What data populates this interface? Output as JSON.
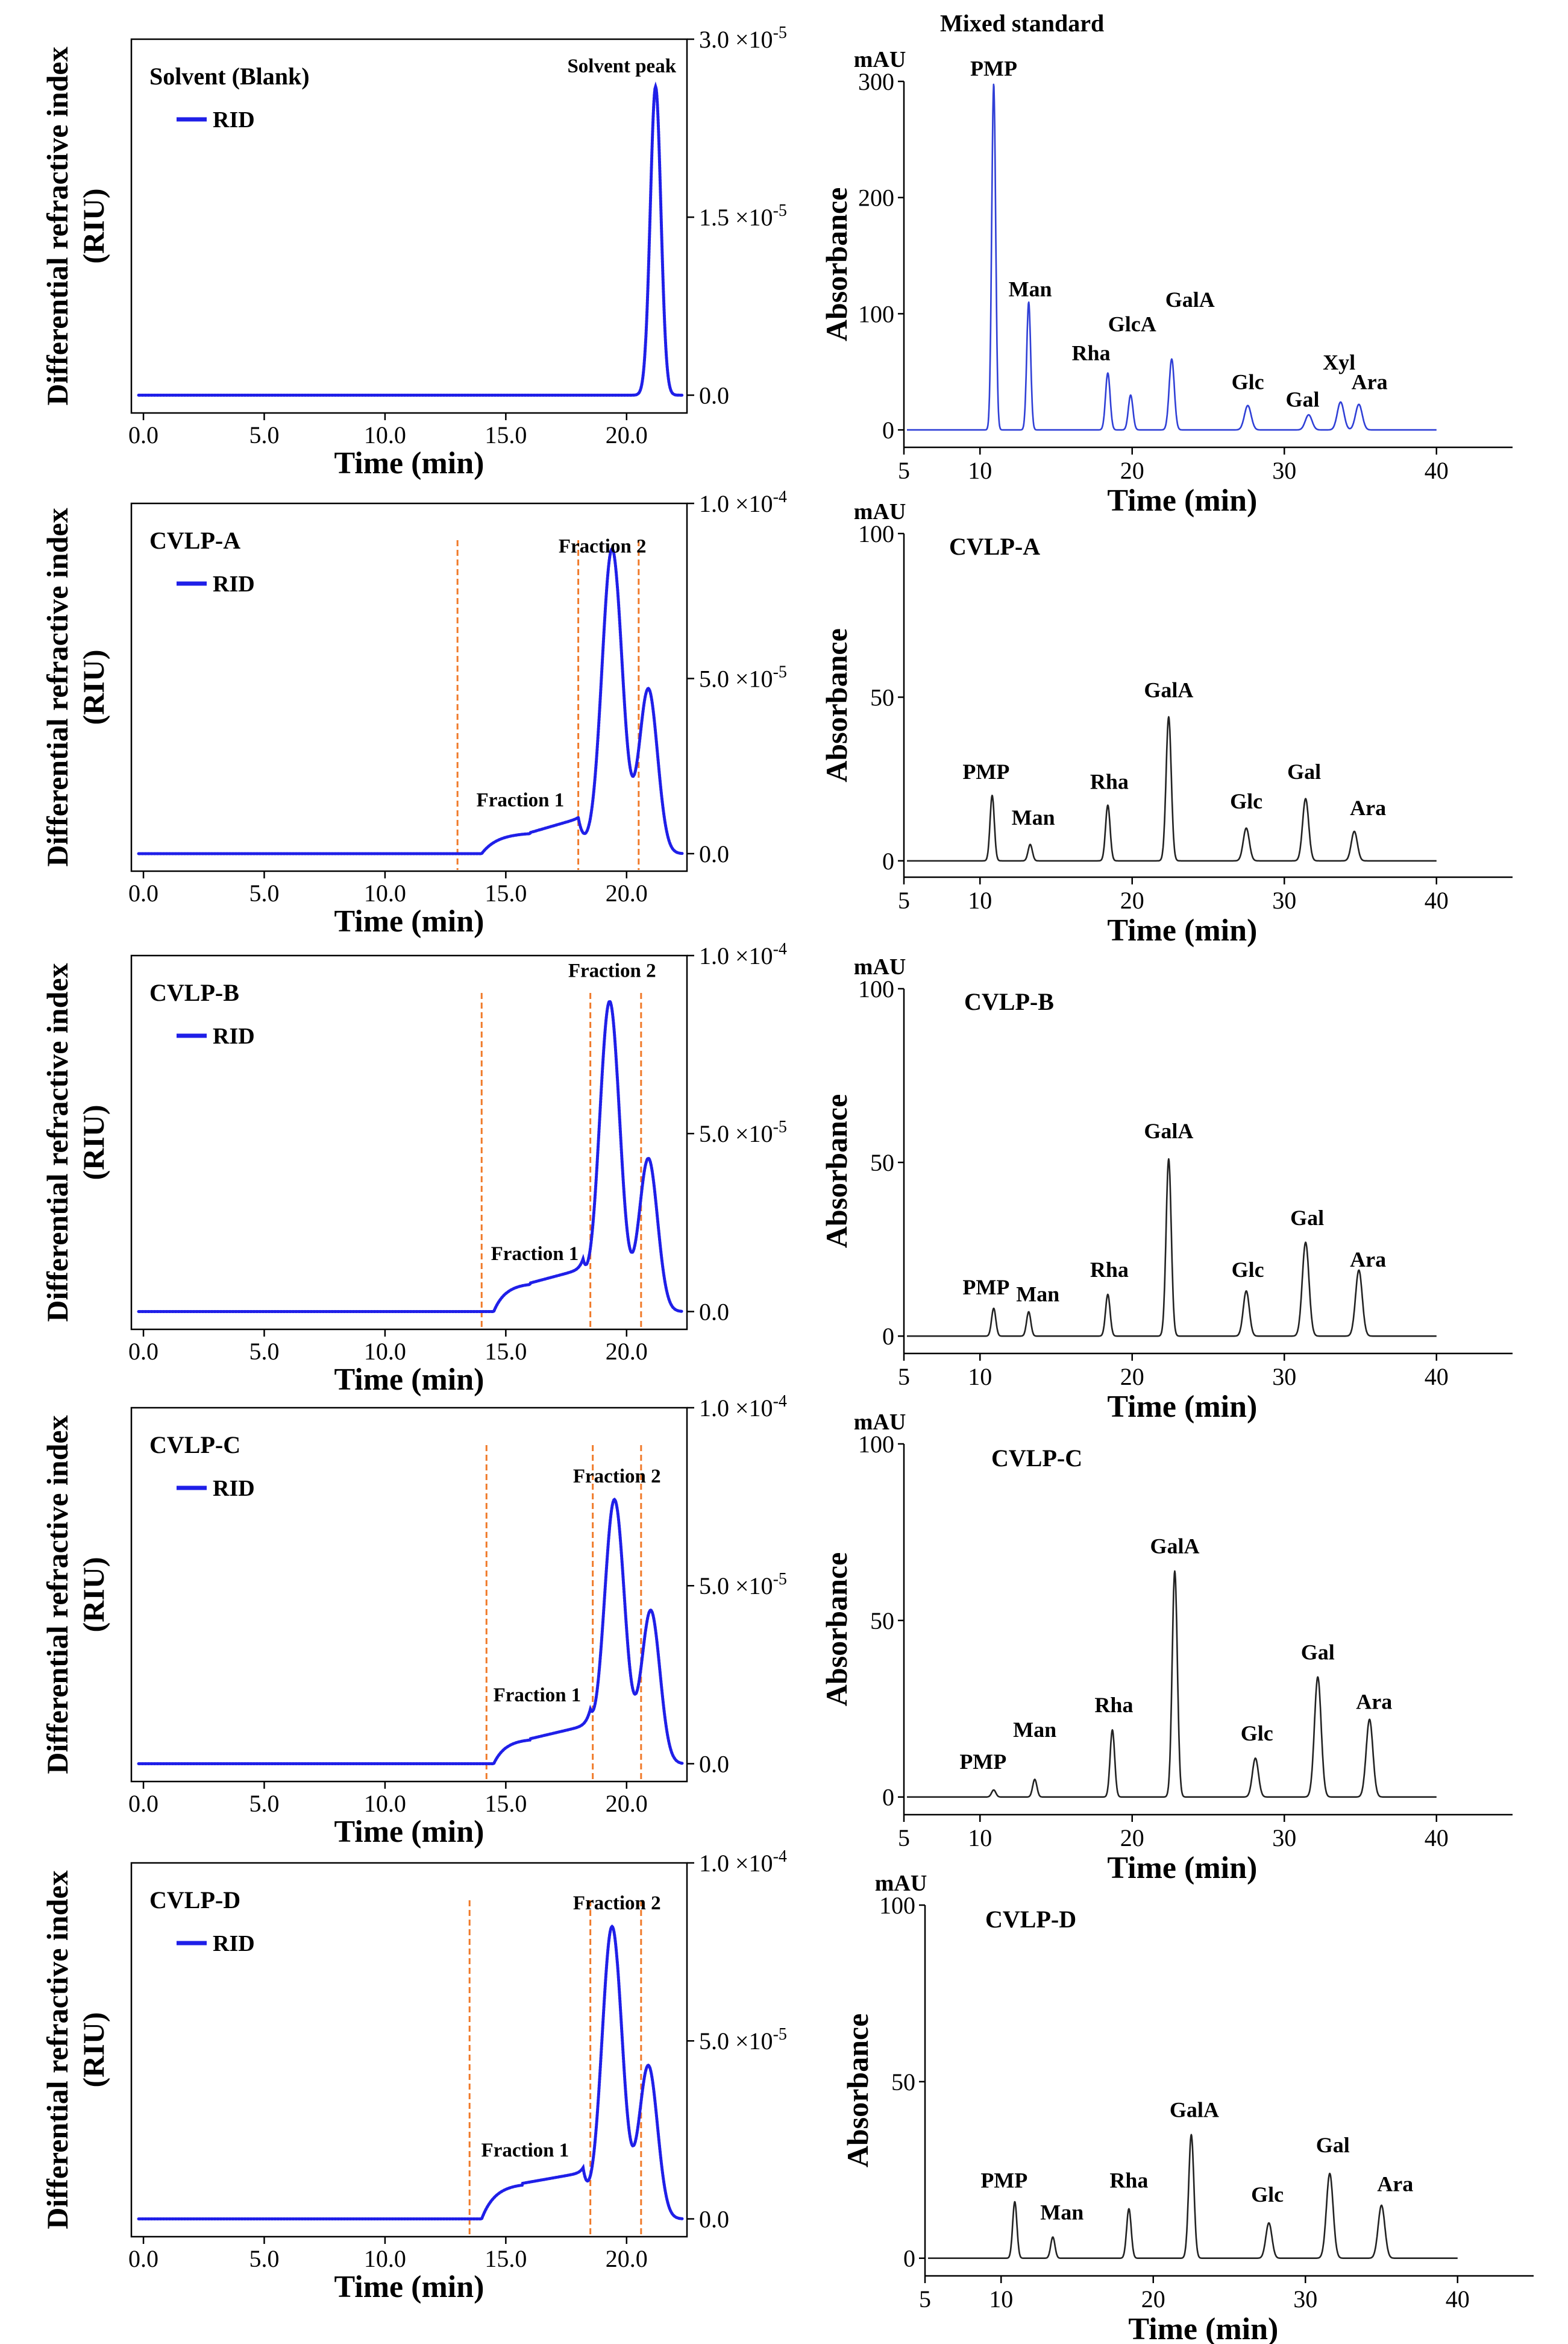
{
  "chart_data": [
    {
      "type": "line",
      "title": "Solvent (Blank)",
      "xlabel": "Time (min)",
      "ylabel": "Differential refractive index (RIU)",
      "xlim": [
        -0.5,
        22.5
      ],
      "ylim": [
        -1.5e-06,
        3e-05
      ],
      "x_ticks": [
        "0.0",
        "5.0",
        "10.0",
        "15.0",
        "20.0"
      ],
      "x_tick_values": [
        0,
        5,
        10,
        15,
        20
      ],
      "y_ticks": [
        "0.0",
        "1.5 ×10⁻⁵",
        "3.0 ×10⁻⁵"
      ],
      "y_tick_values": [
        0,
        1.5e-05,
        3e-05
      ],
      "legend": "RID",
      "color": "#1f1fe8",
      "baseline": 0,
      "shoulder": null,
      "peaks": [
        {
          "x": 21.2,
          "y": 2.6e-05,
          "w": 0.22
        }
      ],
      "peak_labels": [
        {
          "text": "Solvent peak",
          "x": 19.8,
          "y": 2.72e-05
        }
      ],
      "fractions": [],
      "fraction_labels": []
    },
    {
      "type": "line",
      "title": "CVLP-A",
      "xlabel": "Time (min)",
      "ylabel": "Differential refractive index (RIU)",
      "xlim": [
        -0.5,
        22.5
      ],
      "ylim": [
        -5e-06,
        0.0001
      ],
      "x_ticks": [
        "0.0",
        "5.0",
        "10.0",
        "15.0",
        "20.0"
      ],
      "x_tick_values": [
        0,
        5,
        10,
        15,
        20
      ],
      "y_ticks": [
        "0.0",
        "5.0 ×10⁻⁵",
        "1.0 ×10⁻⁴"
      ],
      "y_tick_values": [
        0,
        5e-05,
        0.0001
      ],
      "legend": "RID",
      "color": "#1f1fe8",
      "baseline": 0,
      "shoulder": {
        "start": 14.0,
        "mid": 16.0,
        "end": 18.0,
        "y1": 6e-06,
        "y2": 1e-05
      },
      "peaks": [
        {
          "x": 19.4,
          "y": 8.7e-05,
          "w": 0.42
        },
        {
          "x": 20.9,
          "y": 4.7e-05,
          "w": 0.38
        }
      ],
      "peak_labels": [],
      "fractions": [
        13.0,
        18.0,
        20.5
      ],
      "fraction_labels": [
        {
          "text": "Fraction 1",
          "x": 15.6,
          "y": 1.35e-05
        },
        {
          "text": "Fraction 2",
          "x": 19.0,
          "y": 8.6e-05
        }
      ]
    },
    {
      "type": "line",
      "title": "CVLP-B",
      "xlabel": "Time (min)",
      "ylabel": "Differential refractive index (RIU)",
      "xlim": [
        -0.5,
        22.5
      ],
      "ylim": [
        -5e-06,
        0.0001
      ],
      "x_ticks": [
        "0.0",
        "5.0",
        "10.0",
        "15.0",
        "20.0"
      ],
      "x_tick_values": [
        0,
        5,
        10,
        15,
        20
      ],
      "y_ticks": [
        "0.0",
        "5.0 ×10⁻⁵",
        "1.0 ×10⁻⁴"
      ],
      "y_tick_values": [
        0,
        5e-05,
        0.0001
      ],
      "legend": "RID",
      "color": "#1f1fe8",
      "baseline": 0,
      "shoulder": {
        "start": 14.5,
        "mid": 16.0,
        "end": 18.2,
        "y1": 8e-06,
        "y2": 1.2e-05
      },
      "peaks": [
        {
          "x": 19.3,
          "y": 8.7e-05,
          "w": 0.42
        },
        {
          "x": 20.9,
          "y": 4.3e-05,
          "w": 0.38
        }
      ],
      "peak_labels": [],
      "fractions": [
        14.0,
        18.5,
        20.6
      ],
      "fraction_labels": [
        {
          "text": "Fraction 1",
          "x": 16.2,
          "y": 1.45e-05
        },
        {
          "text": "Fraction 2",
          "x": 19.4,
          "y": 9.4e-05
        }
      ]
    },
    {
      "type": "line",
      "title": "CVLP-C",
      "xlabel": "Time (min)",
      "ylabel": "Differential refractive index (RIU)",
      "xlim": [
        -0.5,
        22.5
      ],
      "ylim": [
        -5e-06,
        0.0001
      ],
      "x_ticks": [
        "0.0",
        "5.0",
        "10.0",
        "15.0",
        "20.0"
      ],
      "x_tick_values": [
        0,
        5,
        10,
        15,
        20
      ],
      "y_ticks": [
        "0.0",
        "5.0 ×10⁻⁵",
        "1.0 ×10⁻⁴"
      ],
      "y_tick_values": [
        0,
        5e-05,
        0.0001
      ],
      "legend": "RID",
      "color": "#1f1fe8",
      "baseline": 0,
      "shoulder": {
        "start": 14.5,
        "mid": 16.0,
        "end": 18.5,
        "y1": 7e-06,
        "y2": 1.1e-05
      },
      "peaks": [
        {
          "x": 19.5,
          "y": 7.4e-05,
          "w": 0.42
        },
        {
          "x": 21.0,
          "y": 4.3e-05,
          "w": 0.38
        }
      ],
      "peak_labels": [],
      "fractions": [
        14.2,
        18.6,
        20.6
      ],
      "fraction_labels": [
        {
          "text": "Fraction 1",
          "x": 16.3,
          "y": 1.75e-05
        },
        {
          "text": "Fraction 2",
          "x": 19.6,
          "y": 7.9e-05
        }
      ]
    },
    {
      "type": "line",
      "title": "CVLP-D",
      "xlabel": "Time (min)",
      "ylabel": "Differential refractive index (RIU)",
      "xlim": [
        -0.5,
        22.5
      ],
      "ylim": [
        -5e-06,
        0.0001
      ],
      "x_ticks": [
        "0.0",
        "5.0",
        "10.0",
        "15.0",
        "20.0"
      ],
      "x_tick_values": [
        0,
        5,
        10,
        15,
        20
      ],
      "y_ticks": [
        "0.0",
        "5.0 ×10⁻⁵",
        "1.0 ×10⁻⁴"
      ],
      "y_tick_values": [
        0,
        5e-05,
        0.0001
      ],
      "legend": "RID",
      "color": "#1f1fe8",
      "baseline": 0,
      "shoulder": {
        "start": 14.0,
        "mid": 15.7,
        "end": 18.2,
        "y1": 1e-05,
        "y2": 1.3e-05
      },
      "peaks": [
        {
          "x": 19.4,
          "y": 8.2e-05,
          "w": 0.42
        },
        {
          "x": 20.9,
          "y": 4.3e-05,
          "w": 0.38
        }
      ],
      "peak_labels": [],
      "fractions": [
        13.5,
        18.5,
        20.6
      ],
      "fraction_labels": [
        {
          "text": "Fraction 1",
          "x": 15.8,
          "y": 1.75e-05
        },
        {
          "text": "Fraction 2",
          "x": 19.6,
          "y": 8.7e-05
        }
      ]
    },
    {
      "type": "line",
      "title": "Mixed standard",
      "xlabel": "Time (min)",
      "ylabel": "Absorbance",
      "unit": "mAU",
      "xlim": [
        5,
        45
      ],
      "ylim": [
        -15,
        300
      ],
      "x_ticks": [
        "5",
        "10",
        "20",
        "30",
        "40"
      ],
      "x_tick_values": [
        5,
        10,
        20,
        30,
        40
      ],
      "y_ticks": [
        "0",
        "100",
        "200",
        "300"
      ],
      "y_tick_values": [
        0,
        100,
        200,
        300
      ],
      "color": "#2f3fd6",
      "baseline": 0,
      "peaks": [
        {
          "x": 10.9,
          "y": 298,
          "w": 0.13
        },
        {
          "x": 13.2,
          "y": 110,
          "w": 0.13
        },
        {
          "x": 18.4,
          "y": 49,
          "w": 0.15
        },
        {
          "x": 19.9,
          "y": 30,
          "w": 0.15
        },
        {
          "x": 22.6,
          "y": 61,
          "w": 0.17
        },
        {
          "x": 27.6,
          "y": 21,
          "w": 0.22
        },
        {
          "x": 31.6,
          "y": 13,
          "w": 0.22
        },
        {
          "x": 33.7,
          "y": 24,
          "w": 0.22
        },
        {
          "x": 34.9,
          "y": 22,
          "w": 0.22
        }
      ],
      "peak_labels": [
        {
          "text": "PMP",
          "x": 10.9,
          "y": 305
        },
        {
          "text": "Man",
          "x": 13.3,
          "y": 115
        },
        {
          "text": "Rha",
          "x": 17.3,
          "y": 60
        },
        {
          "text": "GlcA",
          "x": 20.0,
          "y": 85
        },
        {
          "text": "GalA",
          "x": 23.8,
          "y": 106
        },
        {
          "text": "Glc",
          "x": 27.6,
          "y": 35
        },
        {
          "text": "Gal",
          "x": 31.2,
          "y": 20
        },
        {
          "text": "Xyl",
          "x": 33.6,
          "y": 52
        },
        {
          "text": "Ara",
          "x": 35.6,
          "y": 35
        }
      ]
    },
    {
      "type": "line",
      "title": "CVLP-A",
      "xlabel": "Time (min)",
      "ylabel": "Absorbance",
      "unit": "mAU",
      "xlim": [
        5,
        45
      ],
      "ylim": [
        -5,
        100
      ],
      "x_ticks": [
        "5",
        "10",
        "20",
        "30",
        "40"
      ],
      "x_tick_values": [
        5,
        10,
        20,
        30,
        40
      ],
      "y_ticks": [
        "0",
        "50",
        "100"
      ],
      "y_tick_values": [
        0,
        50,
        100
      ],
      "color": "#222222",
      "baseline": 0,
      "peaks": [
        {
          "x": 10.8,
          "y": 20,
          "w": 0.14
        },
        {
          "x": 13.3,
          "y": 5,
          "w": 0.14
        },
        {
          "x": 18.4,
          "y": 17,
          "w": 0.15
        },
        {
          "x": 22.4,
          "y": 44,
          "w": 0.17
        },
        {
          "x": 27.5,
          "y": 10,
          "w": 0.2
        },
        {
          "x": 31.4,
          "y": 19,
          "w": 0.2
        },
        {
          "x": 34.6,
          "y": 9,
          "w": 0.2
        }
      ],
      "peak_labels": [
        {
          "text": "PMP",
          "x": 10.4,
          "y": 25
        },
        {
          "text": "Man",
          "x": 13.5,
          "y": 11
        },
        {
          "text": "Rha",
          "x": 18.5,
          "y": 22
        },
        {
          "text": "GalA",
          "x": 22.4,
          "y": 50
        },
        {
          "text": "Glc",
          "x": 27.5,
          "y": 16
        },
        {
          "text": "Gal",
          "x": 31.3,
          "y": 25
        },
        {
          "text": "Ara",
          "x": 35.5,
          "y": 14
        }
      ]
    },
    {
      "type": "line",
      "title": "CVLP-B",
      "xlabel": "Time (min)",
      "ylabel": "Absorbance",
      "unit": "mAU",
      "xlim": [
        5,
        45
      ],
      "ylim": [
        -5,
        100
      ],
      "x_ticks": [
        "5",
        "10",
        "20",
        "30",
        "40"
      ],
      "x_tick_values": [
        5,
        10,
        20,
        30,
        40
      ],
      "y_ticks": [
        "0",
        "50",
        "100"
      ],
      "y_tick_values": [
        0,
        50,
        100
      ],
      "color": "#222222",
      "baseline": 0,
      "peaks": [
        {
          "x": 10.9,
          "y": 8,
          "w": 0.14
        },
        {
          "x": 13.2,
          "y": 7,
          "w": 0.14
        },
        {
          "x": 18.4,
          "y": 12,
          "w": 0.15
        },
        {
          "x": 22.4,
          "y": 51,
          "w": 0.17
        },
        {
          "x": 27.5,
          "y": 13,
          "w": 0.2
        },
        {
          "x": 31.4,
          "y": 27,
          "w": 0.22
        },
        {
          "x": 34.9,
          "y": 19,
          "w": 0.22
        }
      ],
      "peak_labels": [
        {
          "text": "PMP",
          "x": 10.4,
          "y": 12
        },
        {
          "text": "Man",
          "x": 13.8,
          "y": 10
        },
        {
          "text": "Rha",
          "x": 18.5,
          "y": 17
        },
        {
          "text": "GalA",
          "x": 22.4,
          "y": 57
        },
        {
          "text": "Glc",
          "x": 27.6,
          "y": 17
        },
        {
          "text": "Gal",
          "x": 31.5,
          "y": 32
        },
        {
          "text": "Ara",
          "x": 35.5,
          "y": 20
        }
      ]
    },
    {
      "type": "line",
      "title": "CVLP-C",
      "xlabel": "Time (min)",
      "ylabel": "Absorbance",
      "unit": "mAU",
      "xlim": [
        5,
        45
      ],
      "ylim": [
        -5,
        100
      ],
      "x_ticks": [
        "5",
        "10",
        "20",
        "30",
        "40"
      ],
      "x_tick_values": [
        5,
        10,
        20,
        30,
        40
      ],
      "y_ticks": [
        "0",
        "50",
        "100"
      ],
      "y_tick_values": [
        0,
        50,
        100
      ],
      "color": "#222222",
      "baseline": 0,
      "peaks": [
        {
          "x": 10.9,
          "y": 2,
          "w": 0.14
        },
        {
          "x": 13.6,
          "y": 5,
          "w": 0.14
        },
        {
          "x": 18.7,
          "y": 19,
          "w": 0.15
        },
        {
          "x": 22.8,
          "y": 64,
          "w": 0.17
        },
        {
          "x": 28.1,
          "y": 11,
          "w": 0.2
        },
        {
          "x": 32.2,
          "y": 34,
          "w": 0.22
        },
        {
          "x": 35.6,
          "y": 22,
          "w": 0.22
        }
      ],
      "peak_labels": [
        {
          "text": "PMP",
          "x": 10.2,
          "y": 8
        },
        {
          "text": "Man",
          "x": 13.6,
          "y": 17
        },
        {
          "text": "Rha",
          "x": 18.8,
          "y": 24
        },
        {
          "text": "GalA",
          "x": 22.8,
          "y": 69
        },
        {
          "text": "Glc",
          "x": 28.2,
          "y": 16
        },
        {
          "text": "Gal",
          "x": 32.2,
          "y": 39
        },
        {
          "text": "Ara",
          "x": 35.9,
          "y": 25
        }
      ]
    },
    {
      "type": "line",
      "title": "CVLP-D",
      "xlabel": "Time (min)",
      "ylabel": "Absorbance",
      "unit": "mAU",
      "xlim": [
        5,
        45
      ],
      "ylim": [
        -5,
        100
      ],
      "x_ticks": [
        "5",
        "10",
        "20",
        "30",
        "40"
      ],
      "x_tick_values": [
        5,
        10,
        20,
        30,
        40
      ],
      "y_ticks": [
        "0",
        "50",
        "100"
      ],
      "y_tick_values": [
        0,
        50,
        100
      ],
      "color": "#222222",
      "baseline": 0,
      "peaks": [
        {
          "x": 10.9,
          "y": 16,
          "w": 0.14
        },
        {
          "x": 13.4,
          "y": 6,
          "w": 0.14
        },
        {
          "x": 18.4,
          "y": 14,
          "w": 0.15
        },
        {
          "x": 22.5,
          "y": 35,
          "w": 0.17
        },
        {
          "x": 27.6,
          "y": 10,
          "w": 0.2
        },
        {
          "x": 31.6,
          "y": 24,
          "w": 0.22
        },
        {
          "x": 35.0,
          "y": 15,
          "w": 0.22
        }
      ],
      "peak_labels": [
        {
          "text": "PMP",
          "x": 10.2,
          "y": 20
        },
        {
          "text": "Man",
          "x": 14.0,
          "y": 11
        },
        {
          "text": "Rha",
          "x": 18.4,
          "y": 20
        },
        {
          "text": "GalA",
          "x": 22.7,
          "y": 40
        },
        {
          "text": "Glc",
          "x": 27.5,
          "y": 16
        },
        {
          "text": "Gal",
          "x": 31.8,
          "y": 30
        },
        {
          "text": "Ara",
          "x": 35.9,
          "y": 19
        }
      ]
    }
  ]
}
